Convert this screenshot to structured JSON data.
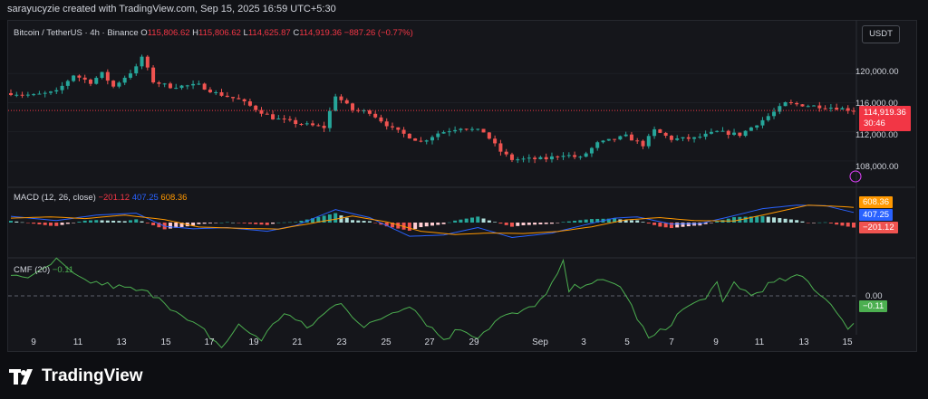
{
  "credit": "sarayucyzie created with TradingView.com, Sep 15, 2025 16:59 UTC+5:30",
  "symbol": {
    "name": "Bitcoin / TetherUS · 4h · Binance",
    "o_label": "O",
    "o": "115,806.62",
    "h_label": "H",
    "h": "115,806.62",
    "l_label": "L",
    "l": "114,625.87",
    "c_label": "C",
    "c": "114,919.36",
    "change": "−887.26 (−0.77%)"
  },
  "currency_button": "USDT",
  "price_axis": [
    "120,000.00",
    "116,000.00",
    "112,000.00",
    "108,000.00"
  ],
  "last_price": {
    "price": "114,919.36",
    "countdown": "30:46",
    "color": "#f23645"
  },
  "macd": {
    "label": "MACD (12, 26, close)",
    "histogram": "−201.12",
    "macd": "407.25",
    "signal": "608.36",
    "colors": {
      "macd": "#2962ff",
      "signal": "#ff9800",
      "hist_pos": "#26a69a",
      "hist_neg": "#ef5350"
    }
  },
  "cmf": {
    "label": "CMF (20)",
    "value": "−0.11",
    "zero_label": "0.00",
    "color": "#4caf50"
  },
  "x_axis": [
    "9",
    "11",
    "13",
    "15",
    "17",
    "19",
    "21",
    "23",
    "25",
    "27",
    "29",
    "Sep",
    "3",
    "5",
    "7",
    "9",
    "11",
    "13",
    "15"
  ],
  "brand": "TradingView",
  "chart_data": {
    "type": "candlestick",
    "title": "Bitcoin / TetherUS · 4h · Binance",
    "price_ticks": [
      108000,
      112000,
      116000,
      120000
    ],
    "ylim": [
      105500,
      124500
    ],
    "price_path": [
      [
        0,
        117300
      ],
      [
        4,
        117000
      ],
      [
        8,
        117500
      ],
      [
        11,
        119800
      ],
      [
        14,
        118800
      ],
      [
        16,
        120000
      ],
      [
        18,
        118200
      ],
      [
        22,
        120800
      ],
      [
        23,
        122300
      ],
      [
        25,
        118900
      ],
      [
        28,
        118200
      ],
      [
        33,
        118400
      ],
      [
        36,
        117300
      ],
      [
        40,
        116400
      ],
      [
        44,
        114700
      ],
      [
        46,
        113900
      ],
      [
        50,
        113200
      ],
      [
        55,
        112600
      ],
      [
        57,
        117000
      ],
      [
        60,
        115000
      ],
      [
        63,
        114700
      ],
      [
        67,
        112400
      ],
      [
        72,
        110600
      ],
      [
        75,
        111800
      ],
      [
        79,
        112600
      ],
      [
        83,
        112000
      ],
      [
        86,
        109300
      ],
      [
        88,
        108200
      ],
      [
        94,
        108300
      ],
      [
        97,
        108900
      ],
      [
        100,
        108400
      ],
      [
        103,
        110400
      ],
      [
        108,
        111400
      ],
      [
        111,
        110200
      ],
      [
        113,
        112200
      ],
      [
        116,
        111000
      ],
      [
        120,
        111100
      ],
      [
        124,
        112000
      ],
      [
        128,
        111600
      ],
      [
        132,
        113600
      ],
      [
        134,
        114700
      ],
      [
        136,
        115900
      ],
      [
        140,
        115600
      ],
      [
        145,
        115300
      ],
      [
        148,
        114919
      ]
    ],
    "macd_path": [
      [
        0,
        250
      ],
      [
        8,
        80
      ],
      [
        15,
        300
      ],
      [
        22,
        380
      ],
      [
        27,
        -150
      ],
      [
        32,
        -250
      ],
      [
        38,
        -200
      ],
      [
        45,
        -350
      ],
      [
        50,
        -120
      ],
      [
        57,
        520
      ],
      [
        63,
        200
      ],
      [
        70,
        -550
      ],
      [
        76,
        -500
      ],
      [
        82,
        -200
      ],
      [
        88,
        -600
      ],
      [
        95,
        -420
      ],
      [
        101,
        -80
      ],
      [
        106,
        180
      ],
      [
        110,
        230
      ],
      [
        116,
        -60
      ],
      [
        121,
        -40
      ],
      [
        126,
        220
      ],
      [
        132,
        560
      ],
      [
        138,
        700
      ],
      [
        143,
        680
      ],
      [
        148,
        407
      ]
    ],
    "signal_path": [
      [
        0,
        180
      ],
      [
        7,
        230
      ],
      [
        13,
        160
      ],
      [
        20,
        300
      ],
      [
        27,
        120
      ],
      [
        33,
        -180
      ],
      [
        40,
        -230
      ],
      [
        47,
        -260
      ],
      [
        54,
        20
      ],
      [
        60,
        260
      ],
      [
        66,
        30
      ],
      [
        72,
        -350
      ],
      [
        78,
        -480
      ],
      [
        84,
        -420
      ],
      [
        90,
        -440
      ],
      [
        96,
        -360
      ],
      [
        102,
        -170
      ],
      [
        108,
        110
      ],
      [
        114,
        200
      ],
      [
        120,
        80
      ],
      [
        127,
        60
      ],
      [
        133,
        350
      ],
      [
        140,
        700
      ],
      [
        146,
        640
      ],
      [
        148,
        608
      ]
    ],
    "cmf_path": [
      [
        0,
        0.08
      ],
      [
        4,
        0.07
      ],
      [
        8,
        0.13
      ],
      [
        12,
        0.06
      ],
      [
        17,
        0.04
      ],
      [
        22,
        0.02
      ],
      [
        26,
        0.0
      ],
      [
        30,
        -0.08
      ],
      [
        34,
        -0.13
      ],
      [
        37,
        -0.19
      ],
      [
        40,
        -0.11
      ],
      [
        44,
        -0.16
      ],
      [
        48,
        -0.06
      ],
      [
        52,
        -0.12
      ],
      [
        56,
        -0.05
      ],
      [
        58,
        -0.02
      ],
      [
        62,
        -0.12
      ],
      [
        66,
        -0.07
      ],
      [
        70,
        -0.03
      ],
      [
        73,
        -0.1
      ],
      [
        76,
        -0.16
      ],
      [
        79,
        -0.12
      ],
      [
        82,
        -0.15
      ],
      [
        86,
        -0.08
      ],
      [
        90,
        -0.06
      ],
      [
        94,
        0.0
      ],
      [
        97,
        0.12
      ],
      [
        98,
        0.02
      ],
      [
        101,
        0.05
      ],
      [
        104,
        0.05
      ],
      [
        107,
        0.04
      ],
      [
        110,
        -0.08
      ],
      [
        112,
        -0.16
      ],
      [
        115,
        -0.12
      ],
      [
        118,
        -0.05
      ],
      [
        121,
        -0.02
      ],
      [
        124,
        0.04
      ],
      [
        125,
        -0.03
      ],
      [
        127,
        0.05
      ],
      [
        130,
        0.0
      ],
      [
        133,
        0.04
      ],
      [
        136,
        0.06
      ],
      [
        139,
        0.07
      ],
      [
        142,
        0.01
      ],
      [
        145,
        -0.05
      ],
      [
        147,
        -0.13
      ],
      [
        148,
        -0.11
      ]
    ],
    "cmf_zero": 0
  }
}
